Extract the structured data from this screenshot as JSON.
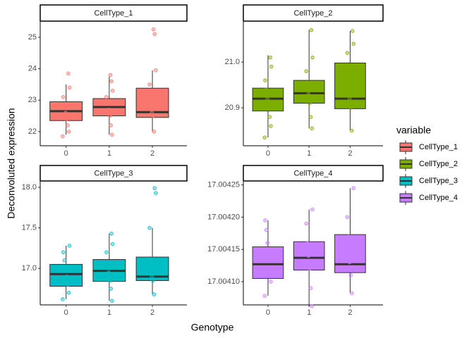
{
  "chart_data": [
    {
      "type": "box",
      "categories": [
        "0",
        "1",
        "2"
      ],
      "ylim": [
        21.55,
        25.49
      ],
      "yticks": [
        22,
        23,
        24,
        25
      ],
      "series": [
        {
          "name": "CellType_1",
          "color": "#f8766d",
          "boxes": [
            {
              "min": 21.9,
              "q1": 22.35,
              "median": 22.65,
              "q3": 22.95,
              "max": 23.5
            },
            {
              "min": 21.9,
              "q1": 22.5,
              "median": 22.78,
              "q3": 23.05,
              "max": 23.75
            },
            {
              "min": 22.0,
              "q1": 22.45,
              "median": 22.62,
              "q3": 23.38,
              "max": 23.95
            }
          ],
          "points": [
            [
              21.85,
              22.0,
              22.2,
              22.4,
              22.6,
              22.8,
              23.1,
              23.4,
              23.85
            ],
            [
              21.9,
              22.2,
              22.5,
              22.7,
              22.9,
              23.1,
              23.3,
              23.6,
              23.8
            ],
            [
              22.0,
              22.5,
              22.6,
              23.0,
              23.5,
              23.95,
              25.1,
              25.25
            ]
          ]
        }
      ]
    },
    {
      "type": "box",
      "categories": [
        "0",
        "1",
        "2"
      ],
      "ylim": [
        20.817,
        21.088
      ],
      "yticks": [
        20.9,
        {
          "value": 21.0,
          "label": "21.0"
        }
      ],
      "series": [
        {
          "name": "CellType_2",
          "color": "#7cae00",
          "boxes": [
            {
              "min": 20.835,
              "q1": 20.893,
              "median": 20.92,
              "q3": 20.943,
              "max": 21.015
            },
            {
              "min": 20.855,
              "q1": 20.91,
              "median": 20.932,
              "q3": 20.96,
              "max": 21.07
            },
            {
              "min": 20.85,
              "q1": 20.898,
              "median": 20.92,
              "q3": 20.998,
              "max": 21.068
            }
          ],
          "points": [
            [
              20.835,
              20.86,
              20.88,
              20.9,
              20.92,
              20.94,
              20.96,
              20.99,
              21.01
            ],
            [
              20.855,
              20.88,
              20.91,
              20.93,
              20.95,
              20.98,
              21.01,
              21.07
            ],
            [
              20.85,
              20.9,
              20.92,
              20.96,
              21.02,
              21.04,
              21.068
            ]
          ]
        }
      ]
    },
    {
      "type": "box",
      "categories": [
        "0",
        "1",
        "2"
      ],
      "ylim": [
        16.55,
        18.07
      ],
      "yticks": [
        {
          "value": 17.0,
          "label": "17.0"
        },
        17.5,
        {
          "value": 18.0,
          "label": "18.0"
        }
      ],
      "series": [
        {
          "name": "CellType_3",
          "color": "#00bfc4",
          "boxes": [
            {
              "min": 16.62,
              "q1": 16.78,
              "median": 16.93,
              "q3": 17.05,
              "max": 17.28
            },
            {
              "min": 16.6,
              "q1": 16.84,
              "median": 16.97,
              "q3": 17.11,
              "max": 17.43
            },
            {
              "min": 16.68,
              "q1": 16.85,
              "median": 16.9,
              "q3": 17.14,
              "max": 17.5
            }
          ],
          "points": [
            [
              16.62,
              16.7,
              16.8,
              16.9,
              17.0,
              17.1,
              17.2,
              17.28
            ],
            [
              16.6,
              16.75,
              16.85,
              16.95,
              17.05,
              17.2,
              17.3,
              17.43
            ],
            [
              16.68,
              16.85,
              16.9,
              17.1,
              17.5,
              17.93,
              17.99
            ]
          ]
        }
      ]
    },
    {
      "type": "box",
      "categories": [
        "0",
        "1",
        "2"
      ],
      "ylim": [
        17.004064,
        17.004255
      ],
      "yticks": [
        {
          "value": 17.0041,
          "label": "17.00410"
        },
        17.00415,
        {
          "value": 17.0042,
          "label": "17.00420"
        },
        17.00425
      ],
      "series": [
        {
          "name": "CellType_4",
          "color": "#c77cff",
          "boxes": [
            {
              "min": 17.004078,
              "q1": 17.004105,
              "median": 17.004127,
              "q3": 17.004154,
              "max": 17.004195
            },
            {
              "min": 17.004062,
              "q1": 17.004118,
              "median": 17.004137,
              "q3": 17.004162,
              "max": 17.004212
            },
            {
              "min": 17.004082,
              "q1": 17.004114,
              "median": 17.004127,
              "q3": 17.004173,
              "max": 17.004245
            }
          ],
          "points": [
            [
              17.004078,
              17.0041,
              17.00412,
              17.00414,
              17.00416,
              17.00418,
              17.004195
            ],
            [
              17.004062,
              17.00409,
              17.00412,
              17.00414,
              17.00416,
              17.00419,
              17.004212
            ],
            [
              17.004082,
              17.00411,
              17.00413,
              17.00417,
              17.0042,
              17.004245
            ]
          ]
        }
      ]
    }
  ],
  "figure": {
    "xlabel": "Genotype",
    "ylabel": "Deconvoluted expression",
    "legend_title": "variable"
  }
}
